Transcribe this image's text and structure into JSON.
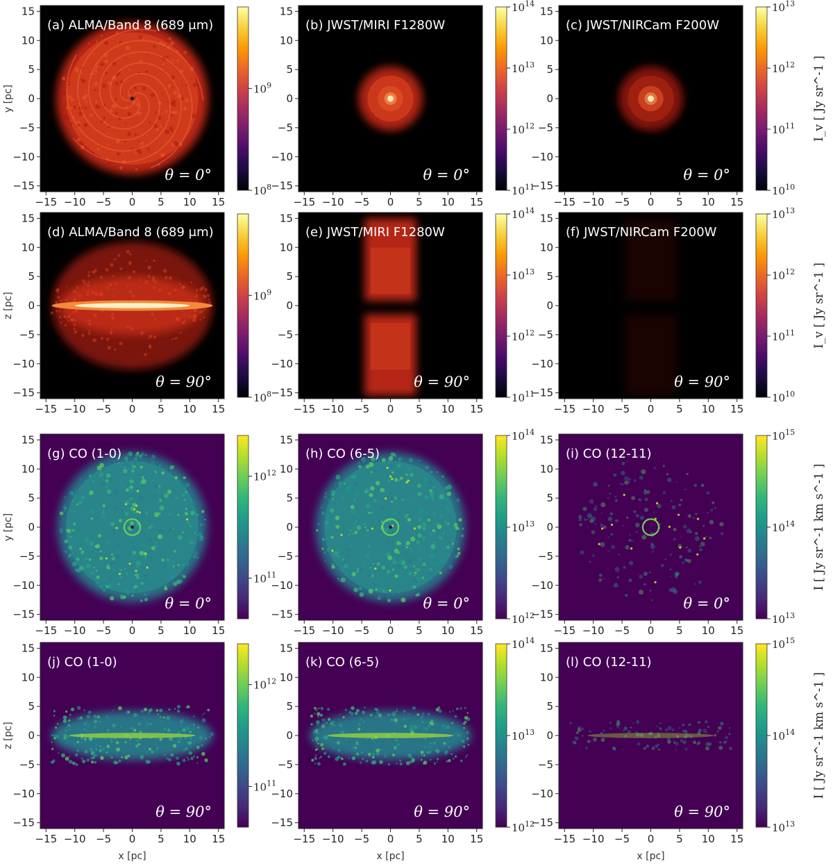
{
  "figure": {
    "colors": {
      "inferno_base": "#000000",
      "viridis_base": "#440154"
    },
    "rows": [
      {
        "cmap": "inferno",
        "ylabel": "y [pc]",
        "xlabel": "",
        "orient": "face",
        "unit_label": "I_v [ Jy sr^-1 ]",
        "panels": [
          {
            "label": "(a)  ALMA/Band 8 (689 μm)",
            "angle": "θ = 0°",
            "emission": "alma",
            "cbar": {
              "ticks": [
                "10^9",
                "10^8"
              ],
              "min_exp": 8,
              "max_exp": 9.8
            }
          },
          {
            "label": "(b)  JWST/MIRI F1280W",
            "angle": "θ = 0°",
            "emission": "miri",
            "cbar": {
              "ticks": [
                "10^14",
                "10^13",
                "10^12",
                "10^11"
              ],
              "min_exp": 11,
              "max_exp": 14
            }
          },
          {
            "label": "(c)  JWST/NIRCam F200W",
            "angle": "θ = 0°",
            "emission": "nircam",
            "cbar": {
              "ticks": [
                "10^13",
                "10^12",
                "10^11",
                "10^10"
              ],
              "min_exp": 10,
              "max_exp": 13
            }
          }
        ]
      },
      {
        "cmap": "inferno",
        "ylabel": "z [pc]",
        "xlabel": "",
        "orient": "edge",
        "unit_label": "I_v [ Jy sr^-1 ]",
        "panels": [
          {
            "label": "(d)  ALMA/Band 8 (689 μm)",
            "angle": "θ = 90°",
            "emission": "alma",
            "cbar": {
              "ticks": [
                "10^9",
                "10^8"
              ],
              "min_exp": 8,
              "max_exp": 9.8
            }
          },
          {
            "label": "(e)  JWST/MIRI F1280W",
            "angle": "θ = 90°",
            "emission": "miri",
            "cbar": {
              "ticks": [
                "10^14",
                "10^13",
                "10^12",
                "10^11"
              ],
              "min_exp": 11,
              "max_exp": 14
            }
          },
          {
            "label": "(f)  JWST/NIRCam F200W",
            "angle": "θ = 90°",
            "emission": "nircam",
            "cbar": {
              "ticks": [
                "10^13",
                "10^12",
                "10^11",
                "10^10"
              ],
              "min_exp": 10,
              "max_exp": 13
            }
          }
        ]
      },
      {
        "cmap": "viridis",
        "ylabel": "y [pc]",
        "xlabel": "",
        "orient": "face",
        "unit_label": "I [ Jy sr^-1 km s^-1 ]",
        "panels": [
          {
            "label": "(g)  CO (1-0)",
            "angle": "θ = 0°",
            "emission": "co10",
            "cbar": {
              "ticks": [
                "10^12",
                "10^11"
              ],
              "min_exp": 10.6,
              "max_exp": 12.4
            }
          },
          {
            "label": "(h)  CO (6-5)",
            "angle": "θ = 0°",
            "emission": "co65",
            "cbar": {
              "ticks": [
                "10^14",
                "10^13",
                "10^12"
              ],
              "min_exp": 12,
              "max_exp": 14
            }
          },
          {
            "label": "(i)  CO (12-11)",
            "angle": "θ = 0°",
            "emission": "co1211",
            "cbar": {
              "ticks": [
                "10^15",
                "10^14",
                "10^13"
              ],
              "min_exp": 13,
              "max_exp": 15
            }
          }
        ]
      },
      {
        "cmap": "viridis",
        "ylabel": "z [pc]",
        "xlabel": "x [pc]",
        "orient": "edge",
        "unit_label": "I [ Jy sr^-1 km s^-1 ]",
        "panels": [
          {
            "label": "(j)  CO (1-0)",
            "angle": "θ = 90°",
            "emission": "co10",
            "cbar": {
              "ticks": [
                "10^12",
                "10^11"
              ],
              "min_exp": 10.6,
              "max_exp": 12.4
            }
          },
          {
            "label": "(k)  CO (6-5)",
            "angle": "θ = 90°",
            "emission": "co65",
            "cbar": {
              "ticks": [
                "10^14",
                "10^13",
                "10^12"
              ],
              "min_exp": 12,
              "max_exp": 14
            }
          },
          {
            "label": "(l)  CO (12-11)",
            "angle": "θ = 90°",
            "emission": "co1211",
            "cbar": {
              "ticks": [
                "10^15",
                "10^14",
                "10^13"
              ],
              "min_exp": 13,
              "max_exp": 15
            }
          }
        ]
      }
    ]
  },
  "chart_data": {
    "type": "heatmap",
    "grid": "3 columns x 4 rows",
    "x_range": [
      -16,
      16
    ],
    "y_range": [
      -16,
      16
    ],
    "x_ticks": [
      -15,
      -10,
      -5,
      0,
      5,
      10,
      15
    ],
    "y_ticks": [
      -15,
      -10,
      -5,
      0,
      5,
      10,
      15
    ],
    "colormaps": [
      "inferno",
      "viridis"
    ],
    "colorbar_scale": "log"
  }
}
